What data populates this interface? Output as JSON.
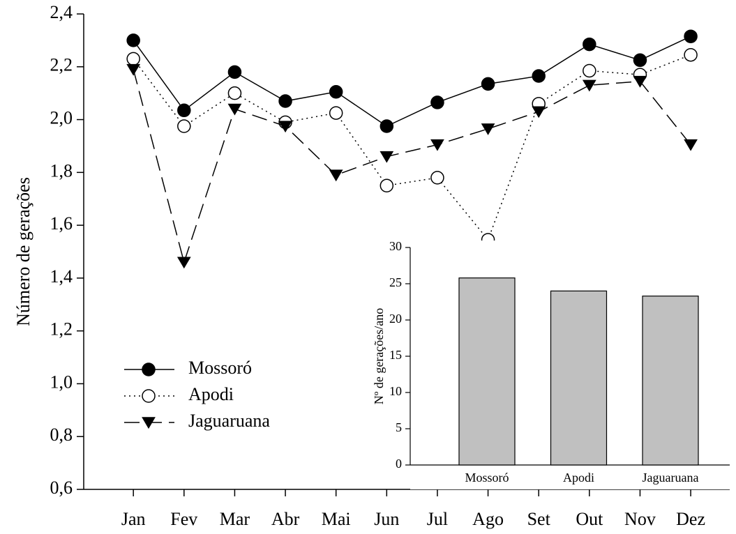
{
  "chart_data": [
    {
      "type": "line",
      "ylabel": "Número de gerações",
      "categories": [
        "Jan",
        "Fev",
        "Mar",
        "Abr",
        "Mai",
        "Jun",
        "Jul",
        "Ago",
        "Set",
        "Out",
        "Nov",
        "Dez"
      ],
      "series": [
        {
          "name": "Mossoró",
          "color": "#000000",
          "line": "solid",
          "marker": "filled-circle",
          "values": [
            2.3,
            2.035,
            2.18,
            2.07,
            2.105,
            1.975,
            2.065,
            2.135,
            2.165,
            2.285,
            2.225,
            2.315
          ]
        },
        {
          "name": "Apodi",
          "color": "#000000",
          "line": "dotted",
          "marker": "open-circle",
          "values": [
            2.23,
            1.975,
            2.1,
            1.99,
            2.025,
            1.75,
            1.78,
            1.545,
            2.06,
            2.185,
            2.17,
            2.245
          ]
        },
        {
          "name": "Jaguaruana",
          "color": "#000000",
          "line": "dashed",
          "marker": "filled-triangle-down",
          "values": [
            2.19,
            1.46,
            2.04,
            1.975,
            1.79,
            1.86,
            1.905,
            1.965,
            2.03,
            2.13,
            2.145,
            1.905
          ]
        }
      ],
      "ylim": [
        0.6,
        2.4
      ],
      "yticks": [
        {
          "value": 0.6,
          "label": "0,6"
        },
        {
          "value": 0.8,
          "label": "0,8"
        },
        {
          "value": 1.0,
          "label": "1,0"
        },
        {
          "value": 1.2,
          "label": "1,2"
        },
        {
          "value": 1.4,
          "label": "1,4"
        },
        {
          "value": 1.6,
          "label": "1,6"
        },
        {
          "value": 1.8,
          "label": "1,8"
        },
        {
          "value": 2.0,
          "label": "2,0"
        },
        {
          "value": 2.2,
          "label": "2,2"
        },
        {
          "value": 2.4,
          "label": "2,4"
        }
      ],
      "grid": false,
      "legend": "lower left"
    },
    {
      "type": "bar",
      "ylabel": "Nº de gerações/ano",
      "categories": [
        "Mossoró",
        "Apodi",
        "Jaguaruana"
      ],
      "values": [
        25.8,
        24.0,
        23.3
      ],
      "color": "#c0c0c0",
      "ylim": [
        0,
        30
      ],
      "yticks": [
        0,
        5,
        10,
        15,
        20,
        25,
        30
      ],
      "grid": false
    }
  ]
}
